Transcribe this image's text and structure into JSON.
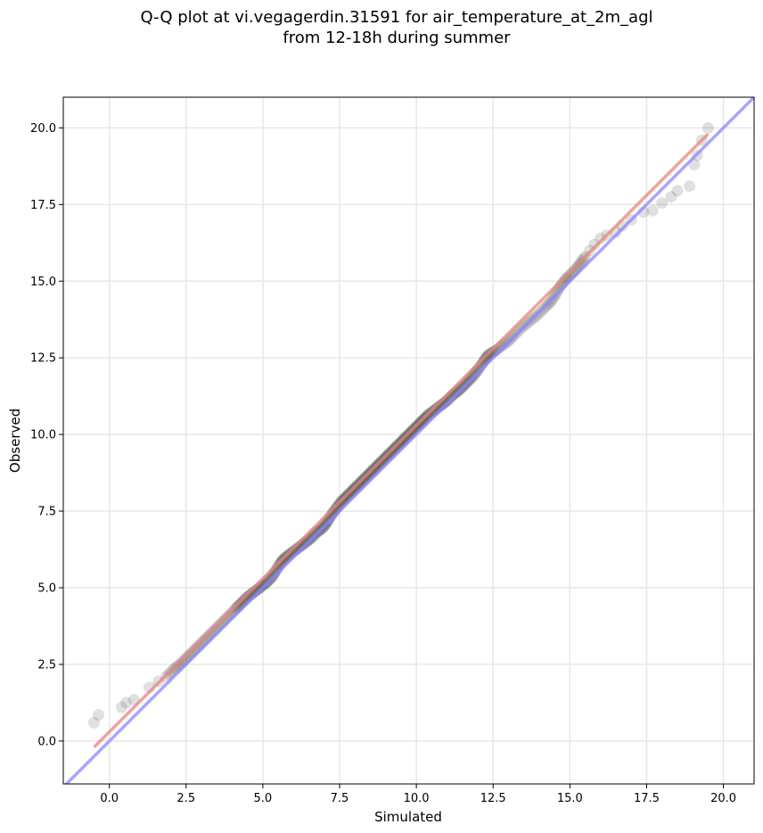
{
  "chart_data": {
    "type": "scatter",
    "title": [
      "Q-Q plot at vi.vegagerdin.31591 for air_temperature_at_2m_agl",
      "from 12-18h during summer"
    ],
    "xlabel": "Simulated",
    "ylabel": "Observed",
    "xlim": [
      -1.5,
      21.0
    ],
    "ylim": [
      -1.4,
      21.0
    ],
    "xticks": [
      "0.0",
      "2.5",
      "5.0",
      "7.5",
      "10.0",
      "12.5",
      "15.0",
      "17.5",
      "20.0"
    ],
    "yticks": [
      "0.0",
      "2.5",
      "5.0",
      "7.5",
      "10.0",
      "12.5",
      "15.0",
      "17.5",
      "20.0"
    ],
    "grid": true,
    "series": [
      {
        "kind": "quantile-points",
        "color": "#555555",
        "points": [
          [
            -0.5,
            0.6
          ],
          [
            -0.35,
            0.85
          ],
          [
            0.4,
            1.1
          ],
          [
            0.55,
            1.25
          ],
          [
            0.8,
            1.35
          ],
          [
            1.3,
            1.75
          ],
          [
            1.6,
            1.95
          ],
          [
            1.85,
            2.1
          ],
          [
            2.1,
            2.35
          ],
          [
            2.3,
            2.5
          ],
          [
            2.5,
            2.7
          ],
          [
            2.7,
            2.9
          ],
          [
            2.9,
            3.1
          ],
          [
            3.1,
            3.3
          ],
          [
            3.3,
            3.5
          ],
          [
            3.5,
            3.7
          ],
          [
            3.7,
            3.9
          ],
          [
            3.9,
            4.1
          ],
          [
            4.1,
            4.3
          ],
          [
            4.3,
            4.5
          ],
          [
            4.5,
            4.7
          ],
          [
            4.7,
            4.85
          ],
          [
            4.9,
            5.0
          ],
          [
            5.1,
            5.15
          ],
          [
            5.3,
            5.35
          ],
          [
            5.45,
            5.6
          ],
          [
            5.6,
            5.85
          ],
          [
            5.75,
            6.0
          ],
          [
            5.95,
            6.15
          ],
          [
            6.15,
            6.3
          ],
          [
            6.35,
            6.45
          ],
          [
            6.55,
            6.6
          ],
          [
            6.75,
            6.8
          ],
          [
            6.95,
            6.95
          ],
          [
            7.1,
            7.15
          ],
          [
            7.25,
            7.4
          ],
          [
            7.4,
            7.6
          ],
          [
            7.55,
            7.8
          ],
          [
            7.7,
            7.95
          ],
          [
            7.85,
            8.1
          ],
          [
            8.0,
            8.25
          ],
          [
            8.15,
            8.4
          ],
          [
            8.3,
            8.55
          ],
          [
            8.45,
            8.7
          ],
          [
            8.6,
            8.85
          ],
          [
            8.75,
            9.0
          ],
          [
            8.9,
            9.15
          ],
          [
            9.05,
            9.3
          ],
          [
            9.2,
            9.45
          ],
          [
            9.35,
            9.6
          ],
          [
            9.5,
            9.75
          ],
          [
            9.65,
            9.9
          ],
          [
            9.8,
            10.05
          ],
          [
            9.95,
            10.2
          ],
          [
            10.1,
            10.35
          ],
          [
            10.25,
            10.5
          ],
          [
            10.4,
            10.65
          ],
          [
            10.6,
            10.8
          ],
          [
            10.8,
            10.95
          ],
          [
            11.0,
            11.1
          ],
          [
            11.2,
            11.3
          ],
          [
            11.4,
            11.45
          ],
          [
            11.6,
            11.65
          ],
          [
            11.8,
            11.85
          ],
          [
            12.0,
            12.1
          ],
          [
            12.2,
            12.4
          ],
          [
            12.35,
            12.6
          ],
          [
            12.6,
            12.75
          ],
          [
            12.8,
            12.9
          ],
          [
            13.0,
            13.05
          ],
          [
            13.2,
            13.25
          ],
          [
            13.45,
            13.5
          ],
          [
            13.7,
            13.7
          ],
          [
            13.95,
            13.9
          ],
          [
            14.2,
            14.15
          ],
          [
            14.4,
            14.35
          ],
          [
            14.55,
            14.6
          ],
          [
            14.7,
            14.85
          ],
          [
            14.85,
            15.05
          ],
          [
            15.0,
            15.2
          ],
          [
            15.2,
            15.4
          ],
          [
            15.35,
            15.6
          ],
          [
            15.5,
            15.8
          ],
          [
            15.65,
            16.0
          ],
          [
            15.8,
            16.2
          ],
          [
            16.0,
            16.4
          ],
          [
            16.2,
            16.5
          ],
          [
            16.5,
            16.6
          ],
          [
            16.7,
            16.8
          ],
          [
            17.0,
            17.0
          ],
          [
            17.4,
            17.25
          ],
          [
            17.7,
            17.3
          ],
          [
            18.0,
            17.55
          ],
          [
            18.3,
            17.75
          ],
          [
            18.5,
            17.95
          ],
          [
            18.9,
            18.1
          ],
          [
            19.05,
            18.8
          ],
          [
            19.15,
            19.1
          ],
          [
            19.3,
            19.6
          ],
          [
            19.5,
            20.0
          ]
        ]
      },
      {
        "kind": "fit-line",
        "color": "#f08080",
        "from": [
          -0.5,
          -0.2
        ],
        "to": [
          19.5,
          19.8
        ]
      },
      {
        "kind": "identity-line",
        "color": "#8888ff",
        "from": [
          -1.5,
          -1.5
        ],
        "to": [
          21.0,
          21.0
        ]
      }
    ]
  }
}
